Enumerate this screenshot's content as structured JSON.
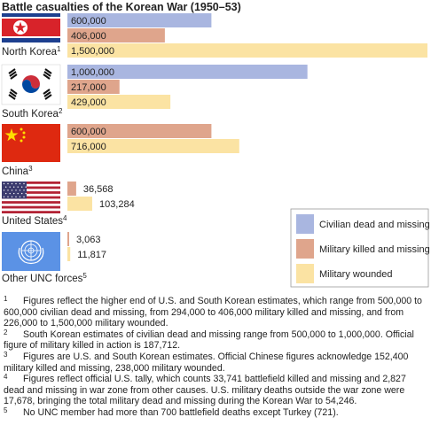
{
  "title": "Battle casualties of the Korean War (1950–53)",
  "chart_data": {
    "type": "bar",
    "orientation": "horizontal",
    "categories": [
      "North Korea",
      "South Korea",
      "China",
      "United States",
      "Other UNC forces"
    ],
    "category_notes": [
      "1",
      "2",
      "3",
      "4",
      "5"
    ],
    "series": [
      {
        "name": "Civilian dead and missing",
        "color": "#a9b6e0",
        "values": [
          600000,
          1000000,
          null,
          null,
          null
        ],
        "labels": [
          "600,000",
          "1,000,000",
          "",
          "",
          ""
        ]
      },
      {
        "name": "Military killed and missing",
        "color": "#dfa58c",
        "values": [
          406000,
          217000,
          600000,
          36568,
          3063
        ],
        "labels": [
          "406,000",
          "217,000",
          "600,000",
          "36,568",
          "3,063"
        ]
      },
      {
        "name": "Military wounded",
        "color": "#fbe3a3",
        "values": [
          1500000,
          429000,
          716000,
          103284,
          11817
        ],
        "labels": [
          "1,500,000",
          "429,000",
          "716,000",
          "103,284",
          "11,817"
        ]
      }
    ],
    "xlim": [
      0,
      1500000
    ],
    "legend_position": "right"
  },
  "footnotes": [
    {
      "num": "1",
      "text": "Figures reflect the higher end of U.S. and South Korean estimates, which range from 500,000 to 600,000 civilian dead and missing, from 294,000 to 406,000 military killed and missing, and from 226,000 to 1,500,000 military wounded."
    },
    {
      "num": "2",
      "text": "South Korean estimates of civilian dead and missing range from 500,000 to 1,000,000. Official figure of military killed in action is 187,712."
    },
    {
      "num": "3",
      "text": "Figures are U.S. and South Korean estimates. Official Chinese figures acknowledge 152,400 military killed and missing, 238,000 military wounded."
    },
    {
      "num": "4",
      "text": "Figures reflect official U.S. tally, which counts 33,741 battlefield killed and missing and 2,827 dead and missing in war zone from other causes. U.S. military deaths outside the war zone were 17,678, bringing the total military dead and missing during the Korean War to 54,246."
    },
    {
      "num": "5",
      "text": "No UNC member had more than 700 battlefield deaths except Turkey (721)."
    }
  ],
  "flags": [
    "north-korea-flag",
    "south-korea-flag",
    "china-flag",
    "united-states-flag",
    "united-nations-flag"
  ]
}
